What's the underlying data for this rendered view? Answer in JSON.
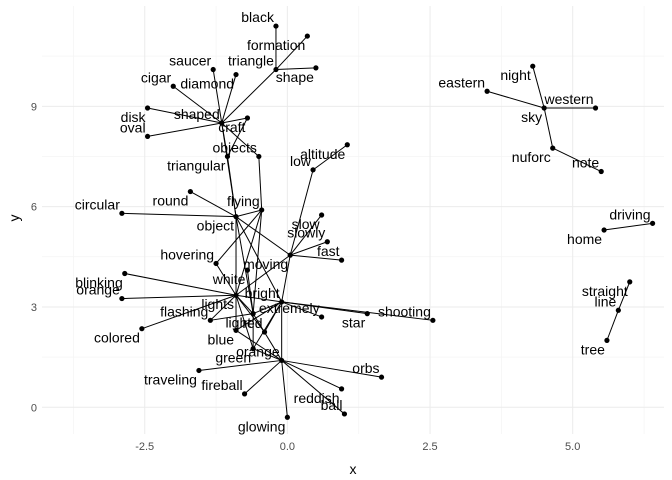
{
  "chart_data": {
    "type": "scatter",
    "title": "",
    "xlabel": "x",
    "ylabel": "y",
    "xlim": [
      -4.3,
      6.6
    ],
    "ylim": [
      -0.8,
      12.0
    ],
    "x_ticks": [
      -2.5,
      0.0,
      2.5,
      5.0
    ],
    "y_ticks": [
      0,
      3,
      6,
      9
    ],
    "x_tick_labels": [
      "-2.5",
      "0.0",
      "2.5",
      "5.0"
    ],
    "y_tick_labels": [
      "0",
      "3",
      "6",
      "9"
    ],
    "grid": true,
    "legend": "none",
    "nodes": [
      {
        "label": "black",
        "x": -0.2,
        "y": 11.4
      },
      {
        "label": "formation",
        "x": 0.35,
        "y": 11.1
      },
      {
        "label": "triangle",
        "x": -0.2,
        "y": 10.1
      },
      {
        "label": "shape",
        "x": 0.5,
        "y": 10.15
      },
      {
        "label": "saucer",
        "x": -1.3,
        "y": 10.1
      },
      {
        "label": "diamond",
        "x": -0.9,
        "y": 9.95
      },
      {
        "label": "cigar",
        "x": -2.0,
        "y": 9.6
      },
      {
        "label": "disk",
        "x": -2.45,
        "y": 8.95
      },
      {
        "label": "shaped",
        "x": -1.15,
        "y": 8.5
      },
      {
        "label": "craft",
        "x": -0.7,
        "y": 8.65
      },
      {
        "label": "oval",
        "x": -2.45,
        "y": 8.1
      },
      {
        "label": "triangular",
        "x": -1.05,
        "y": 7.5
      },
      {
        "label": "objects",
        "x": -0.5,
        "y": 7.5
      },
      {
        "label": "altitude",
        "x": 1.05,
        "y": 7.85
      },
      {
        "label": "low",
        "x": 0.45,
        "y": 7.1
      },
      {
        "label": "round",
        "x": -1.7,
        "y": 6.45
      },
      {
        "label": "circular",
        "x": -2.9,
        "y": 5.8
      },
      {
        "label": "object",
        "x": -0.9,
        "y": 5.7
      },
      {
        "label": "flying",
        "x": -0.45,
        "y": 5.9
      },
      {
        "label": "slow",
        "x": 0.6,
        "y": 5.75
      },
      {
        "label": "slowly",
        "x": 0.7,
        "y": 4.95
      },
      {
        "label": "moving",
        "x": 0.05,
        "y": 4.55
      },
      {
        "label": "fast",
        "x": 0.95,
        "y": 4.4
      },
      {
        "label": "blinking",
        "x": -2.85,
        "y": 4.0
      },
      {
        "label": "hovering",
        "x": -1.25,
        "y": 4.3
      },
      {
        "label": "white",
        "x": -0.7,
        "y": 4.1
      },
      {
        "label": "orange",
        "x": -2.9,
        "y": 3.25
      },
      {
        "label": "lights",
        "x": -0.9,
        "y": 3.35
      },
      {
        "label": "bright",
        "x": -0.1,
        "y": 3.15
      },
      {
        "label": "light",
        "x": -0.6,
        "y": 2.8
      },
      {
        "label": "flashing",
        "x": -1.35,
        "y": 2.6
      },
      {
        "label": "colored",
        "x": -2.55,
        "y": 2.35
      },
      {
        "label": "extremely",
        "x": 0.6,
        "y": 2.7
      },
      {
        "label": "star",
        "x": 1.4,
        "y": 2.8
      },
      {
        "label": "shooting",
        "x": 2.55,
        "y": 2.6
      },
      {
        "label": "blue",
        "x": -0.9,
        "y": 2.3
      },
      {
        "label": "red",
        "x": -0.4,
        "y": 2.25
      },
      {
        "label": "green",
        "x": -0.6,
        "y": 1.75
      },
      {
        "label": "orange",
        "x": -0.1,
        "y": 1.4
      },
      {
        "label": "traveling",
        "x": -1.55,
        "y": 1.1
      },
      {
        "label": "orbs",
        "x": 1.65,
        "y": 0.9
      },
      {
        "label": "reddish",
        "x": 0.95,
        "y": 0.55
      },
      {
        "label": "fireball",
        "x": -0.75,
        "y": 0.4
      },
      {
        "label": "glowing",
        "x": 0.0,
        "y": -0.3
      },
      {
        "label": "ball",
        "x": 1.0,
        "y": -0.2
      },
      {
        "label": "night",
        "x": 4.3,
        "y": 10.2
      },
      {
        "label": "eastern",
        "x": 3.5,
        "y": 9.45
      },
      {
        "label": "sky",
        "x": 4.5,
        "y": 8.95
      },
      {
        "label": "western",
        "x": 5.4,
        "y": 8.95
      },
      {
        "label": "nuforc",
        "x": 4.65,
        "y": 7.75
      },
      {
        "label": "note",
        "x": 5.5,
        "y": 7.05
      },
      {
        "label": "home",
        "x": 5.55,
        "y": 5.3
      },
      {
        "label": "driving",
        "x": 6.4,
        "y": 5.5
      },
      {
        "label": "straight",
        "x": 6.0,
        "y": 3.75
      },
      {
        "label": "line",
        "x": 5.8,
        "y": 2.9
      },
      {
        "label": "tree",
        "x": 5.6,
        "y": 2.0
      }
    ],
    "edges": [
      [
        0,
        2
      ],
      [
        1,
        2
      ],
      [
        3,
        2
      ],
      [
        2,
        8
      ],
      [
        4,
        8
      ],
      [
        5,
        8
      ],
      [
        6,
        8
      ],
      [
        7,
        8
      ],
      [
        10,
        8
      ],
      [
        9,
        8
      ],
      [
        11,
        8
      ],
      [
        8,
        12
      ],
      [
        12,
        18
      ],
      [
        11,
        17
      ],
      [
        8,
        17
      ],
      [
        9,
        11
      ],
      [
        15,
        17
      ],
      [
        16,
        17
      ],
      [
        17,
        18
      ],
      [
        17,
        21
      ],
      [
        17,
        27
      ],
      [
        17,
        28
      ],
      [
        17,
        29
      ],
      [
        13,
        14
      ],
      [
        14,
        21
      ],
      [
        19,
        21
      ],
      [
        20,
        21
      ],
      [
        22,
        21
      ],
      [
        21,
        27
      ],
      [
        21,
        28
      ],
      [
        18,
        29
      ],
      [
        18,
        27
      ],
      [
        18,
        24
      ],
      [
        23,
        27
      ],
      [
        24,
        27
      ],
      [
        25,
        29
      ],
      [
        26,
        27
      ],
      [
        30,
        27
      ],
      [
        31,
        27
      ],
      [
        27,
        28
      ],
      [
        27,
        29
      ],
      [
        27,
        35
      ],
      [
        27,
        36
      ],
      [
        27,
        37
      ],
      [
        28,
        29
      ],
      [
        28,
        32
      ],
      [
        28,
        33
      ],
      [
        28,
        34
      ],
      [
        28,
        35
      ],
      [
        28,
        36
      ],
      [
        28,
        37
      ],
      [
        28,
        38
      ],
      [
        29,
        37
      ],
      [
        29,
        30
      ],
      [
        29,
        38
      ],
      [
        35,
        38
      ],
      [
        38,
        40
      ],
      [
        38,
        41
      ],
      [
        38,
        42
      ],
      [
        38,
        43
      ],
      [
        38,
        44
      ],
      [
        37,
        38
      ],
      [
        39,
        38
      ],
      [
        45,
        47
      ],
      [
        46,
        47
      ],
      [
        47,
        48
      ],
      [
        47,
        49
      ],
      [
        49,
        50
      ],
      [
        51,
        52
      ],
      [
        53,
        54
      ],
      [
        54,
        55
      ]
    ]
  }
}
